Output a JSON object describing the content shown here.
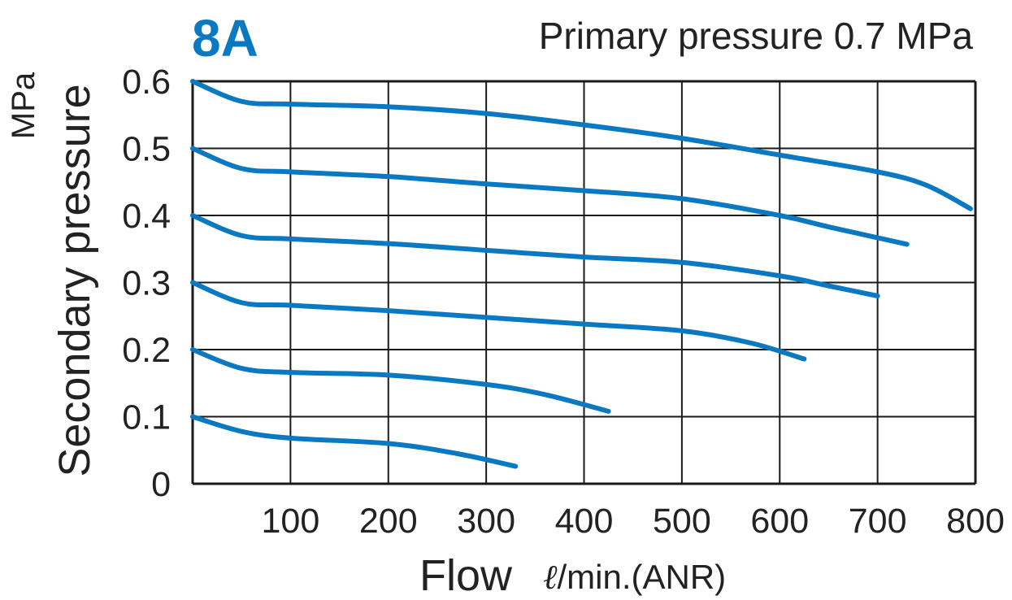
{
  "colors": {
    "accent": "#0b79c1",
    "grid": "#1a1a1a",
    "text": "#222222"
  },
  "chart_data": {
    "type": "line",
    "title": "8A",
    "subtitle": "Primary pressure 0.7 MPa",
    "xlabel": "Flow",
    "xunit_symbol": "ℓ",
    "xunit_rest": "/min.(ANR)",
    "ylabel": "Secondary pressure",
    "yunit": "MPa",
    "xlim": [
      0,
      800
    ],
    "ylim": [
      0,
      0.6
    ],
    "x_ticks": [
      "100",
      "200",
      "300",
      "400",
      "500",
      "600",
      "700",
      "800"
    ],
    "y_ticks": [
      "0",
      "0.1",
      "0.2",
      "0.3",
      "0.4",
      "0.5",
      "0.6"
    ],
    "grid": true,
    "series": [
      {
        "points": [
          [
            0,
            0.6
          ],
          [
            50,
            0.57
          ],
          [
            100,
            0.566
          ],
          [
            200,
            0.562
          ],
          [
            300,
            0.552
          ],
          [
            400,
            0.535
          ],
          [
            500,
            0.515
          ],
          [
            600,
            0.49
          ],
          [
            700,
            0.465
          ],
          [
            750,
            0.445
          ],
          [
            795,
            0.41
          ]
        ]
      },
      {
        "points": [
          [
            0,
            0.5
          ],
          [
            50,
            0.47
          ],
          [
            100,
            0.465
          ],
          [
            200,
            0.458
          ],
          [
            300,
            0.447
          ],
          [
            400,
            0.437
          ],
          [
            500,
            0.425
          ],
          [
            600,
            0.4
          ],
          [
            650,
            0.383
          ],
          [
            730,
            0.357
          ]
        ]
      },
      {
        "points": [
          [
            0,
            0.4
          ],
          [
            50,
            0.37
          ],
          [
            100,
            0.365
          ],
          [
            200,
            0.358
          ],
          [
            300,
            0.348
          ],
          [
            400,
            0.338
          ],
          [
            500,
            0.33
          ],
          [
            600,
            0.31
          ],
          [
            650,
            0.295
          ],
          [
            700,
            0.28
          ]
        ]
      },
      {
        "points": [
          [
            0,
            0.3
          ],
          [
            50,
            0.27
          ],
          [
            100,
            0.266
          ],
          [
            200,
            0.258
          ],
          [
            300,
            0.248
          ],
          [
            400,
            0.238
          ],
          [
            500,
            0.228
          ],
          [
            570,
            0.21
          ],
          [
            625,
            0.186
          ]
        ]
      },
      {
        "points": [
          [
            0,
            0.2
          ],
          [
            50,
            0.172
          ],
          [
            100,
            0.166
          ],
          [
            200,
            0.162
          ],
          [
            300,
            0.148
          ],
          [
            360,
            0.133
          ],
          [
            425,
            0.108
          ]
        ]
      },
      {
        "points": [
          [
            0,
            0.1
          ],
          [
            50,
            0.078
          ],
          [
            100,
            0.068
          ],
          [
            200,
            0.06
          ],
          [
            270,
            0.045
          ],
          [
            330,
            0.026
          ]
        ]
      }
    ]
  }
}
